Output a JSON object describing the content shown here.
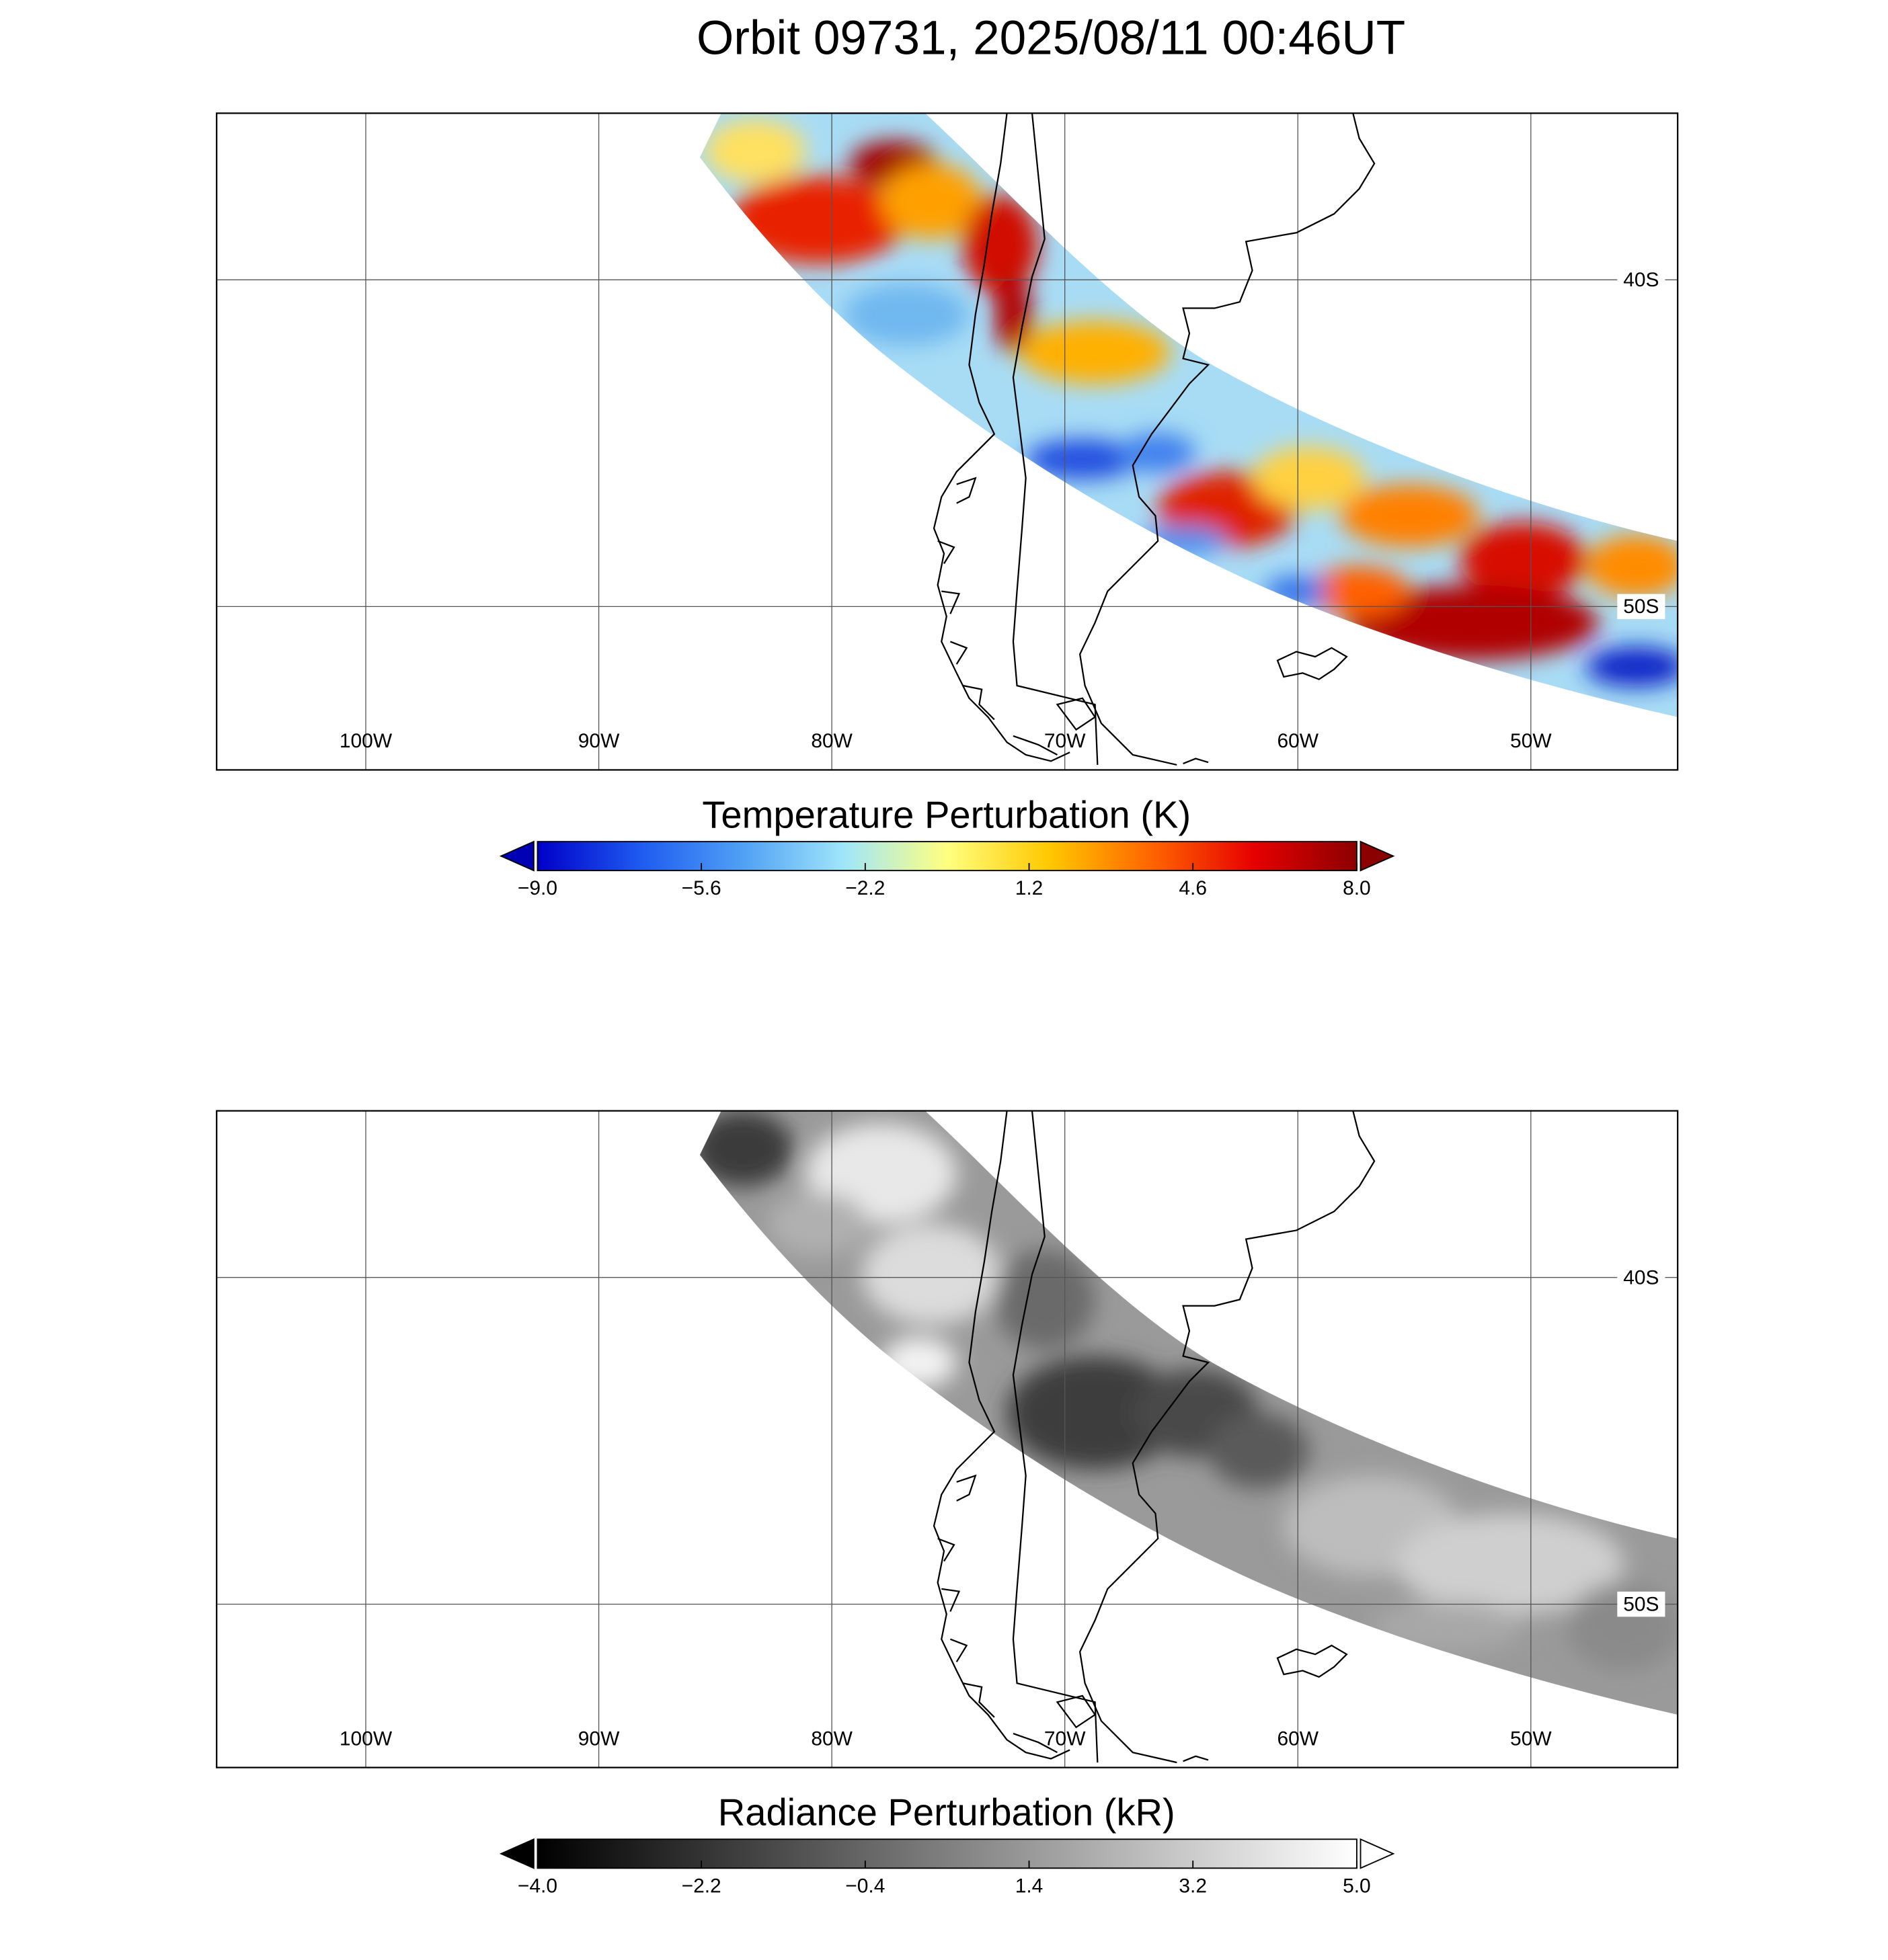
{
  "title": "Orbit 09731, 2025/08/11 00:46UT",
  "panels": [
    {
      "lonlim": [
        -106.4,
        -43.7
      ],
      "latlim": [
        -55,
        -34.9
      ],
      "lon_ticks": [
        {
          "value": -100,
          "label": "100W"
        },
        {
          "value": -90,
          "label": "90W"
        },
        {
          "value": -80,
          "label": "80W"
        },
        {
          "value": -70,
          "label": "70W"
        },
        {
          "value": -60,
          "label": "60W"
        },
        {
          "value": -50,
          "label": "50W"
        }
      ],
      "lat_ticks": [
        {
          "value": -40,
          "label": "40S"
        },
        {
          "value": -50,
          "label": "50S"
        }
      ],
      "colorbar": {
        "title": "Temperature Perturbation (K)",
        "lim": [
          -9,
          8
        ],
        "ticks": [
          {
            "value": -9,
            "label": "−9.0"
          },
          {
            "value": -5.6,
            "label": "−5.6"
          },
          {
            "value": -2.2,
            "label": "−2.2"
          },
          {
            "value": 1.2,
            "label": "1.2"
          },
          {
            "value": 4.6,
            "label": "4.6"
          },
          {
            "value": 8,
            "label": "8.0"
          }
        ],
        "colors": [
          "#0000c8",
          "#1e5af0",
          "#50a0f5",
          "#a0e6fa",
          "#ffff80",
          "#ffc800",
          "#ff6400",
          "#e60000",
          "#8c0000"
        ],
        "under_color": "#0000b4",
        "over_color": "#8b0000"
      }
    },
    {
      "lonlim": [
        -106.4,
        -43.7
      ],
      "latlim": [
        -55,
        -34.9
      ],
      "lon_ticks": [
        {
          "value": -100,
          "label": "100W"
        },
        {
          "value": -90,
          "label": "90W"
        },
        {
          "value": -80,
          "label": "80W"
        },
        {
          "value": -70,
          "label": "70W"
        },
        {
          "value": -60,
          "label": "60W"
        },
        {
          "value": -50,
          "label": "50W"
        }
      ],
      "lat_ticks": [
        {
          "value": -40,
          "label": "40S"
        },
        {
          "value": -50,
          "label": "50S"
        }
      ],
      "colorbar": {
        "title": "Radiance Perturbation (kR)",
        "lim": [
          -4,
          5
        ],
        "ticks": [
          {
            "value": -4,
            "label": "−4.0"
          },
          {
            "value": -2.2,
            "label": "−2.2"
          },
          {
            "value": -0.4,
            "label": "−0.4"
          },
          {
            "value": 1.4,
            "label": "1.4"
          },
          {
            "value": 3.2,
            "label": "3.2"
          },
          {
            "value": 5,
            "label": "5.0"
          }
        ],
        "colors": [
          "#000000",
          "#ffffff"
        ],
        "under_color": "#000000",
        "over_color": "#ffffff"
      }
    }
  ]
}
